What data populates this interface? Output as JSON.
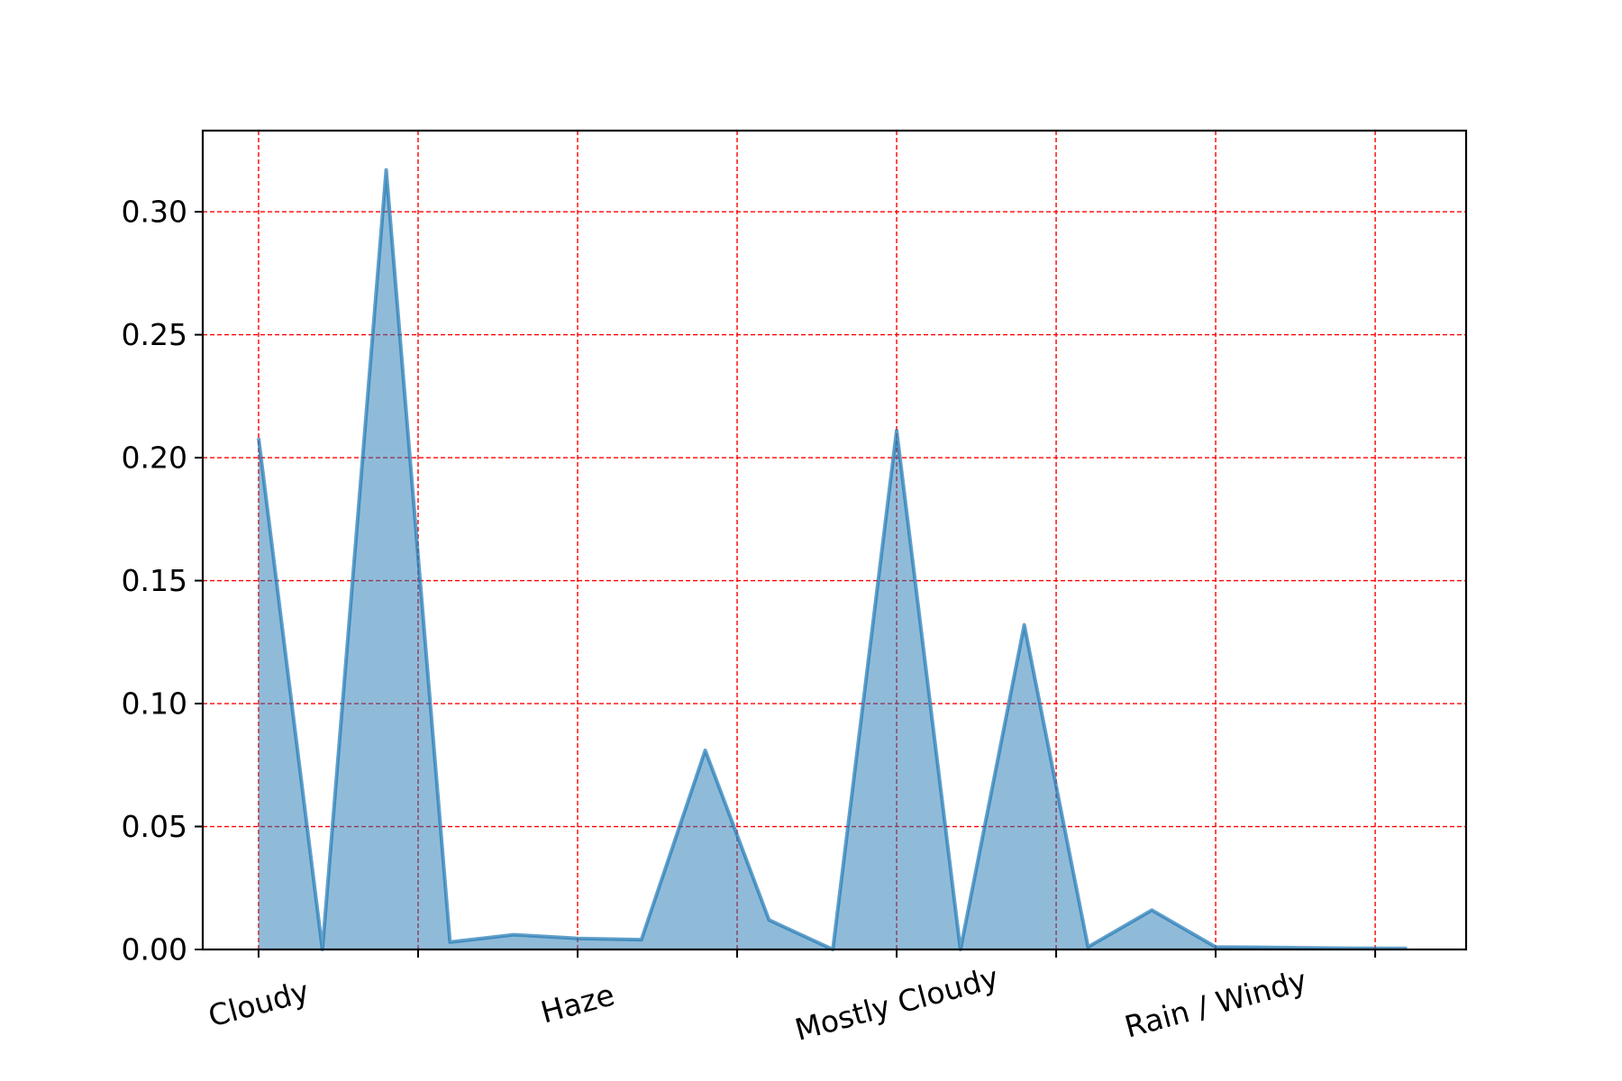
{
  "chart_data": {
    "type": "area",
    "title": "",
    "xlabel": "",
    "ylabel": "",
    "x_tick_labels": [
      "Cloudy",
      "Haze",
      "Mostly Cloudy",
      "Rain / Windy"
    ],
    "y_tick_labels": [
      "0.00",
      "0.05",
      "0.10",
      "0.15",
      "0.20",
      "0.25",
      "0.30"
    ],
    "y_ticks": [
      0.0,
      0.05,
      0.1,
      0.15,
      0.2,
      0.25,
      0.3
    ],
    "ylim": [
      0,
      0.333
    ],
    "xlim": [
      -0.35,
      7.57
    ],
    "grid": true,
    "grid_color": "#ff0000",
    "grid_style": "dashed",
    "fill_color": "#1f77b4",
    "fill_alpha": 0.5,
    "line_color": "#1f77b4",
    "x_ticks": [
      0,
      1,
      2,
      3,
      4,
      5,
      6,
      7
    ],
    "x_tick_label_positions": [
      0,
      2,
      4,
      6
    ],
    "series": [
      {
        "x": [
          0,
          0.4,
          0.8,
          1.2,
          1.6,
          2.0,
          2.4,
          2.8,
          3.2,
          3.6,
          4.0,
          4.4,
          4.8,
          5.2,
          5.6,
          6.0,
          6.4,
          6.8,
          7.2
        ],
        "values": [
          0.208,
          0.0,
          0.317,
          0.003,
          0.006,
          0.0045,
          0.004,
          0.081,
          0.012,
          0.0,
          0.211,
          0.0,
          0.132,
          0.001,
          0.016,
          0.001,
          0.0008,
          0.0005,
          0.0004
        ]
      }
    ]
  }
}
